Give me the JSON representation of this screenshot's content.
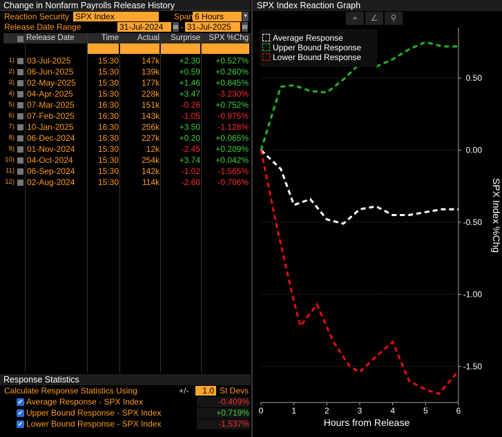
{
  "left_panel": {
    "title": "Change in Nonfarm Payrolls Release History",
    "reaction_security_label": "Reaction Security",
    "reaction_security_value": "SPX Index",
    "span_label": "Span",
    "span_value": "6 Hours",
    "date_range_label": "Release Date Range",
    "date_start": "31-Jul-2024",
    "date_end": "31-Jul-2025",
    "columns": [
      "Release Date",
      "Time",
      "Actual",
      "Surprise",
      "SPX %Chg"
    ],
    "rows": [
      {
        "idx": "1)",
        "date": "03-Jul-2025",
        "time": "15:30",
        "actual": "147k",
        "surprise": "+2.30",
        "spx": "+0.527%"
      },
      {
        "idx": "2)",
        "date": "06-Jun-2025",
        "time": "15:30",
        "actual": "139k",
        "surprise": "+0.59",
        "spx": "+0.260%"
      },
      {
        "idx": "3)",
        "date": "02-May-2025",
        "time": "15:30",
        "actual": "177k",
        "surprise": "+1.46",
        "spx": "+0.845%"
      },
      {
        "idx": "4)",
        "date": "04-Apr-2025",
        "time": "15:30",
        "actual": "228k",
        "surprise": "+3.47",
        "spx": "-3.230%"
      },
      {
        "idx": "5)",
        "date": "07-Mar-2025",
        "time": "16:30",
        "actual": "151k",
        "surprise": "-0.26",
        "spx": "+0.752%"
      },
      {
        "idx": "6)",
        "date": "07-Feb-2025",
        "time": "16:30",
        "actual": "143k",
        "surprise": "-1.05",
        "spx": "-0.975%"
      },
      {
        "idx": "7)",
        "date": "10-Jan-2025",
        "time": "16:30",
        "actual": "256k",
        "surprise": "+3.50",
        "spx": "-1.128%"
      },
      {
        "idx": "8)",
        "date": "06-Dec-2024",
        "time": "16:30",
        "actual": "227k",
        "surprise": "+0.20",
        "spx": "+0.065%"
      },
      {
        "idx": "9)",
        "date": "01-Nov-2024",
        "time": "15:30",
        "actual": "12k",
        "surprise": "-2.45",
        "spx": "+0.209%"
      },
      {
        "idx": "10)",
        "date": "04-Oct-2024",
        "time": "15:30",
        "actual": "254k",
        "surprise": "+3.74",
        "spx": "+0.042%"
      },
      {
        "idx": "11)",
        "date": "06-Sep-2024",
        "time": "15:30",
        "actual": "142k",
        "surprise": "-1.02",
        "spx": "-1.565%"
      },
      {
        "idx": "12)",
        "date": "02-Aug-2024",
        "time": "15:30",
        "actual": "114k",
        "surprise": "-2.60",
        "spx": "-0.706%"
      }
    ]
  },
  "stats": {
    "title": "Response Statistics",
    "calc_label": "Calculate Response Statistics Using",
    "pm_label": "+/-",
    "stdev_value": "1.0",
    "stdev_label": "St Devs",
    "items": [
      {
        "label": "Average Response - SPX Index",
        "value": "-0.409%"
      },
      {
        "label": "Upper Bound Response - SPX Index",
        "value": "+0.719%"
      },
      {
        "label": "Lower Bound Response - SPX Index",
        "value": "-1.537%"
      }
    ]
  },
  "right_panel": {
    "title": "SPX Index Reaction Graph",
    "tools": [
      "crosshair-icon",
      "pencil-icon",
      "magnifier-icon"
    ]
  },
  "colors": {
    "average": "#ffffff",
    "upper": "#22b522",
    "lower": "#e01010",
    "orange": "#ff9a1a"
  },
  "chart_data": {
    "type": "line",
    "xlabel": "Hours from Release",
    "ylabel": "SPX Index %Chg",
    "xlim": [
      0,
      6
    ],
    "ylim": [
      -1.75,
      0.85
    ],
    "xticks": [
      "0",
      "1",
      "2",
      "3",
      "4",
      "5",
      "6"
    ],
    "yticks": [
      0.5,
      0.0,
      -0.5,
      -1.0,
      -1.5
    ],
    "ytick_labels": [
      "0.50",
      "0.00",
      "-0.50",
      "-1.00",
      "-1.50"
    ],
    "legend_position": "top-left",
    "grid": true,
    "series": [
      {
        "name": "Average Response",
        "color": "#ffffff",
        "x": [
          0,
          0.6,
          1.0,
          1.5,
          2.0,
          2.5,
          3.0,
          3.5,
          4.0,
          4.5,
          5.0,
          5.5,
          6.0
        ],
        "y": [
          0.0,
          -0.13,
          -0.38,
          -0.34,
          -0.48,
          -0.51,
          -0.41,
          -0.39,
          -0.45,
          -0.45,
          -0.43,
          -0.41,
          -0.41
        ]
      },
      {
        "name": "Upper Bound Response",
        "color": "#22b522",
        "x": [
          0,
          0.6,
          1.0,
          1.5,
          2.0,
          2.5,
          3.0,
          3.5,
          4.0,
          4.5,
          5.0,
          5.5,
          6.0
        ],
        "y": [
          0.0,
          0.44,
          0.45,
          0.41,
          0.4,
          0.49,
          0.6,
          0.58,
          0.63,
          0.7,
          0.75,
          0.72,
          0.72
        ]
      },
      {
        "name": "Lower Bound Response",
        "color": "#e01010",
        "x": [
          0,
          0.5,
          1.0,
          1.2,
          1.7,
          2.2,
          2.7,
          3.0,
          3.5,
          4.0,
          4.5,
          5.0,
          5.4,
          6.0
        ],
        "y": [
          0.0,
          -0.55,
          -1.05,
          -1.22,
          -1.07,
          -1.33,
          -1.5,
          -1.54,
          -1.43,
          -1.33,
          -1.6,
          -1.66,
          -1.69,
          -1.53
        ]
      }
    ]
  }
}
